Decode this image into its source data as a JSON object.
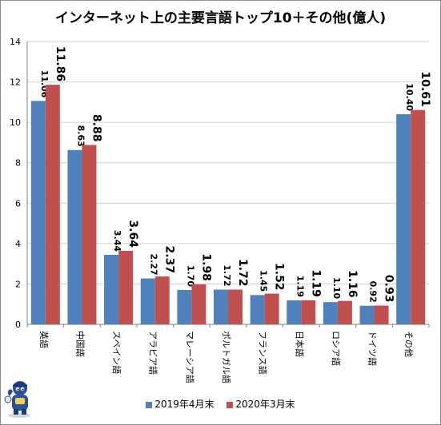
{
  "chart_data": {
    "type": "bar",
    "title": "インターネット上の主要言語トップ10＋その他(億人)",
    "xlabel": "",
    "ylabel": "",
    "ylim": [
      0,
      14
    ],
    "yticks": [
      "0",
      "2",
      "4",
      "6",
      "8",
      "10",
      "12",
      "14"
    ],
    "grid": true,
    "legend_position": "bottom",
    "categories": [
      "英語",
      "中国語",
      "スペイン語",
      "アラビア語",
      "マレーシア語",
      "ポルトガル語",
      "フランス語",
      "日本語",
      "ロシア語",
      "ドイツ語",
      "その他"
    ],
    "series": [
      {
        "name": "2019年4月末",
        "color": "#4f81bd",
        "values": [
          11.06,
          8.63,
          3.44,
          2.27,
          1.7,
          1.72,
          1.45,
          1.19,
          1.1,
          0.92,
          10.4
        ],
        "labels": [
          "11.06",
          "8.63",
          "3.44",
          "2.27",
          "1.70",
          "1.72",
          "1.45",
          "1.19",
          "1.10",
          "0.92",
          "10.40"
        ]
      },
      {
        "name": "2020年3月末",
        "color": "#c0504d",
        "values": [
          11.86,
          8.88,
          3.64,
          2.37,
          1.98,
          1.72,
          1.52,
          1.19,
          1.16,
          0.93,
          10.61
        ],
        "labels": [
          "11.86",
          "8.88",
          "3.64",
          "2.37",
          "1.98",
          "1.72",
          "1.52",
          "1.19",
          "1.16",
          "0.93",
          "10.61"
        ]
      }
    ]
  }
}
